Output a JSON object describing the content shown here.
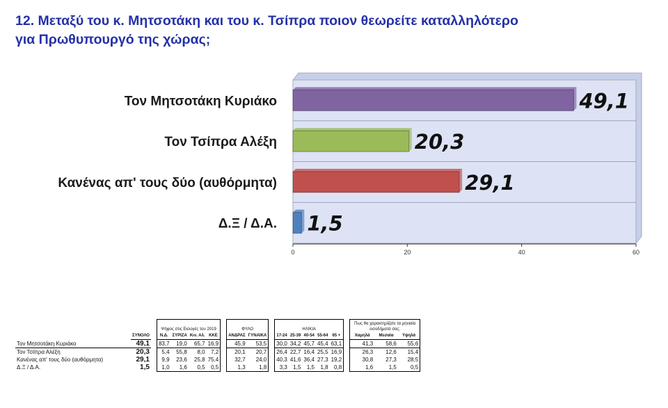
{
  "title": {
    "line1": "12. Μεταξύ του κ. Μητσοτάκη και του κ. Τσίπρα ποιον θεωρείτε καταλληλότερο",
    "line2": "για Πρωθυπουργό της χώρας;"
  },
  "chart_data": {
    "type": "bar",
    "orientation": "horizontal",
    "categories": [
      "Τον Μητσοτάκη Κυριάκο",
      "Τον Τσίπρα Αλέξη",
      "Κανένας απ' τους δύο (αυθόρμητα)",
      "Δ.Ξ / Δ.Α."
    ],
    "values": [
      49.1,
      20.3,
      29.1,
      1.5
    ],
    "value_labels": [
      "49,1",
      "20,3",
      "29,1",
      "1,5"
    ],
    "colors": [
      "#8064a2",
      "#9bbb59",
      "#c0504d",
      "#4f81bd"
    ],
    "xlim": [
      0,
      60
    ],
    "xticks": [
      0,
      20,
      40,
      60
    ],
    "plot_background": "#dde3f4",
    "grid": true,
    "legend": "none"
  },
  "table": {
    "headers": {
      "total": "ΣΥΝΟΛΟ",
      "groups": [
        {
          "title": "Ψήφος στις Εκλογές του 2019",
          "cols": [
            "Ν.Δ.",
            "ΣΥΡΙΖΑ",
            "Κιν. Αλ.",
            "ΚΚΕ"
          ]
        },
        {
          "title": "ΦΥΛΟ",
          "cols": [
            "ΑΝΔΡΑΣ",
            "ΓΥΝΑΙΚΑ"
          ]
        },
        {
          "title": "ΗΛΙΚΙΑ",
          "cols": [
            "17-24",
            "25-39",
            "40-54",
            "55-64",
            "65 +"
          ]
        },
        {
          "title": "Πως θα χαρακτηρίζατε τα μηνιαία εισοδήματά σας;",
          "cols": [
            "Χαμηλά",
            "Μεσαία",
            "Υψηλά"
          ]
        }
      ]
    },
    "rows": [
      {
        "label": "Τον Μητσοτάκη Κυριάκο",
        "total": "49,1",
        "vote": [
          "83,7",
          "19,0",
          "65,7",
          "16,9"
        ],
        "sex": [
          "45,9",
          "53,5"
        ],
        "age": [
          "30,0",
          "34,2",
          "45,7",
          "45,4",
          "63,1"
        ],
        "income": [
          "41,3",
          "58,6",
          "55,6"
        ]
      },
      {
        "label": "Τον Τσίπρα Αλέξη",
        "total": "20,3",
        "vote": [
          "5,4",
          "55,8",
          "8,0",
          "7,2"
        ],
        "sex": [
          "20,1",
          "20,7"
        ],
        "age": [
          "26,4",
          "22,7",
          "16,4",
          "25,5",
          "16,9"
        ],
        "income": [
          "26,3",
          "12,6",
          "15,4"
        ]
      },
      {
        "label": "Κανένας απ' τους δύο (αυθόρμητα)",
        "total": "29,1",
        "vote": [
          "9,9",
          "23,6",
          "25,8",
          "75,4"
        ],
        "sex": [
          "32,7",
          "24,0"
        ],
        "age": [
          "40,3",
          "41,6",
          "36,4",
          "27,3",
          "19,2"
        ],
        "income": [
          "30,8",
          "27,3",
          "28,5"
        ]
      },
      {
        "label": "Δ.Ξ / Δ.Α.",
        "total": "1,5",
        "vote": [
          "1,0",
          "1,6",
          "0,5",
          "0,5"
        ],
        "sex": [
          "1,3",
          "1,8"
        ],
        "age": [
          "3,3",
          "1,5",
          "1,5",
          "1,8",
          "0,8"
        ],
        "income": [
          "1,6",
          "1,5",
          "0,5"
        ]
      }
    ]
  }
}
